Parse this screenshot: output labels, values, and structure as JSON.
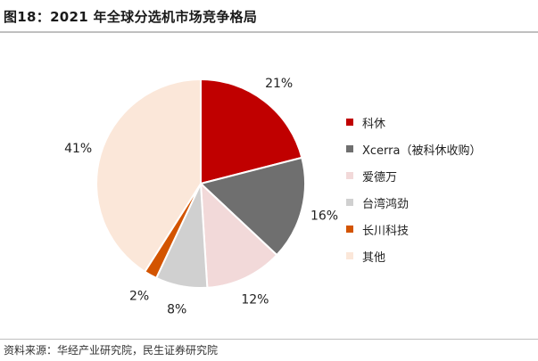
{
  "header": {
    "title": "图18：2021 年全球分选机市场竞争格局"
  },
  "footer": {
    "source": "资料来源：华经产业研究院，民生证券研究院"
  },
  "chart_data": {
    "type": "pie",
    "title": "",
    "labels": [
      "科休",
      "Xcerra（被科休收购）",
      "爱德万",
      "台湾鸿劲",
      "长川科技",
      "其他"
    ],
    "values": [
      21,
      16,
      12,
      8,
      2,
      41
    ],
    "value_labels": [
      "21%",
      "16%",
      "12%",
      "8%",
      "2%",
      "41%"
    ],
    "colors": [
      "#c00000",
      "#6f6f6f",
      "#f2d9d9",
      "#d0d0d0",
      "#d35400",
      "#fbe7d9"
    ],
    "start_angle": "12 o'clock, clockwise",
    "legend_position": "right"
  }
}
